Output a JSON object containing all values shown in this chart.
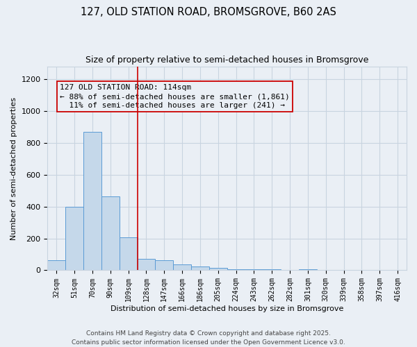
{
  "title1": "127, OLD STATION ROAD, BROMSGROVE, B60 2AS",
  "title2": "Size of property relative to semi-detached houses in Bromsgrove",
  "xlabel": "Distribution of semi-detached houses by size in Bromsgrove",
  "ylabel": "Number of semi-detached properties",
  "categories": [
    "32sqm",
    "51sqm",
    "70sqm",
    "90sqm",
    "109sqm",
    "128sqm",
    "147sqm",
    "166sqm",
    "186sqm",
    "205sqm",
    "224sqm",
    "243sqm",
    "262sqm",
    "282sqm",
    "301sqm",
    "320sqm",
    "339sqm",
    "358sqm",
    "397sqm",
    "416sqm"
  ],
  "values": [
    65,
    400,
    870,
    465,
    205,
    70,
    65,
    35,
    25,
    15,
    5,
    5,
    5,
    2,
    5,
    0,
    0,
    0,
    0,
    0
  ],
  "bar_color": "#c5d8ea",
  "bar_edge_color": "#5b9bd5",
  "grid_color": "#c8d4e0",
  "background_color": "#eaeff5",
  "vline_x": 4.5,
  "vline_color": "#cc0000",
  "annotation_line1": "127 OLD STATION ROAD: 114sqm",
  "annotation_line2": "← 88% of semi-detached houses are smaller (1,861)",
  "annotation_line3": "  11% of semi-detached houses are larger (241) →",
  "ylim": [
    0,
    1280
  ],
  "footer_text": "Contains HM Land Registry data © Crown copyright and database right 2025.\nContains public sector information licensed under the Open Government Licence v3.0.",
  "title1_fontsize": 10.5,
  "title2_fontsize": 9,
  "axis_fontsize": 8,
  "tick_fontsize": 7,
  "annotation_fontsize": 8,
  "footer_fontsize": 6.5
}
